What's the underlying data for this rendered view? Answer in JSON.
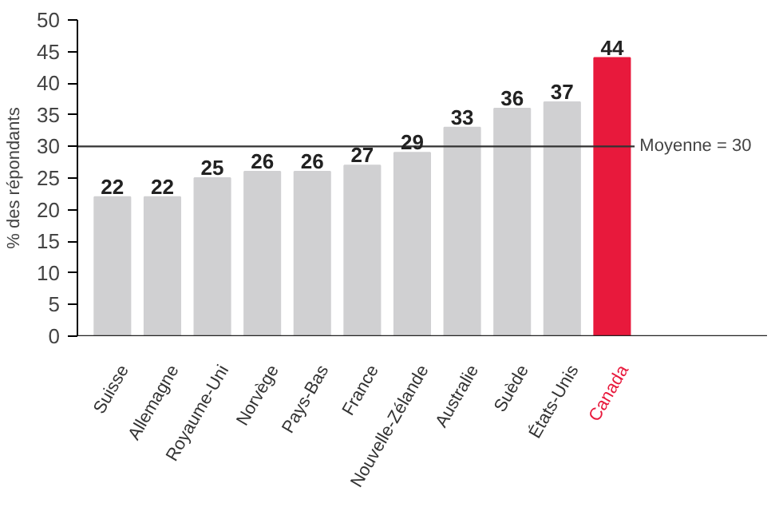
{
  "chart_data": {
    "type": "bar",
    "ylabel": "% des répondants",
    "categories": [
      "Suisse",
      "Allemagne",
      "Royaume-Uni",
      "Norvège",
      "Pays-Bas",
      "France",
      "Nouvelle-Zélande",
      "Australie",
      "Suède",
      "États-Unis",
      "Canada"
    ],
    "values": [
      22,
      22,
      25,
      26,
      26,
      27,
      29,
      33,
      36,
      37,
      44
    ],
    "colors": [
      "#d0d0d2",
      "#d0d0d2",
      "#d0d0d2",
      "#d0d0d2",
      "#d0d0d2",
      "#d0d0d2",
      "#d0d0d2",
      "#d0d0d2",
      "#d0d0d2",
      "#d0d0d2",
      "#e8193c"
    ],
    "ylim": [
      0,
      50
    ],
    "yticks": [
      0,
      5,
      10,
      15,
      20,
      25,
      30,
      35,
      40,
      45,
      50
    ],
    "ref_lines": [
      {
        "axis": "y",
        "value": 30,
        "label": "Moyenne = 30",
        "color": "#333333"
      }
    ],
    "data_labels": true,
    "grid": false
  }
}
